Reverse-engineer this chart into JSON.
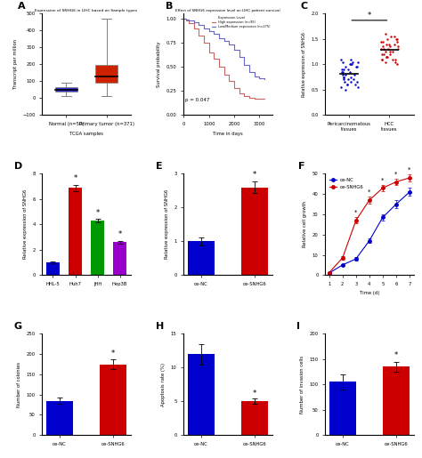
{
  "panel_A": {
    "title": "Expression of SNHG6 in LIHC based on Sample types",
    "xlabel": "TCGA samples",
    "ylabel": "Transcript per million",
    "xlabels": [
      "Normal (n=50)",
      "Primary tumor (n=371)"
    ],
    "ylim": [
      -100,
      500
    ],
    "yticks": [
      -100,
      0,
      100,
      200,
      300,
      400,
      500
    ],
    "normal_box": {
      "median": 50,
      "q1": 40,
      "q3": 65,
      "whislo": 10,
      "whishi": 90
    },
    "tumor_box": {
      "median": 130,
      "q1": 90,
      "q3": 195,
      "whislo": 15,
      "whishi": 470
    },
    "colors": [
      "#3333cc",
      "#cc2200"
    ]
  },
  "panel_B": {
    "title": "Effect of SNHG6 expression level on LIHC patient survival",
    "xlabel": "Time in days",
    "ylabel": "Survival probability",
    "pvalue": "p = 0.047",
    "high_x": [
      0,
      100,
      200,
      400,
      600,
      800,
      1000,
      1200,
      1400,
      1600,
      1800,
      2000,
      2200,
      2400,
      2600,
      2800,
      3000,
      3200
    ],
    "high_y": [
      1.0,
      0.98,
      0.95,
      0.9,
      0.82,
      0.75,
      0.65,
      0.58,
      0.5,
      0.42,
      0.35,
      0.28,
      0.22,
      0.2,
      0.18,
      0.17,
      0.17,
      0.17
    ],
    "low_x": [
      0,
      100,
      200,
      400,
      600,
      800,
      1000,
      1200,
      1400,
      1600,
      1800,
      2000,
      2200,
      2400,
      2600,
      2800,
      3000,
      3200
    ],
    "low_y": [
      1.0,
      0.99,
      0.98,
      0.96,
      0.93,
      0.9,
      0.87,
      0.84,
      0.8,
      0.77,
      0.73,
      0.68,
      0.6,
      0.52,
      0.45,
      0.4,
      0.38,
      0.37
    ],
    "legend_label": "Expression Level",
    "legend_high": "High expression (n=95)",
    "legend_low": "Low/Medium expression (n=275)",
    "color_high": "#cc6666",
    "color_low": "#6666cc",
    "ylim": [
      0,
      1.05
    ],
    "xlim": [
      0,
      3500
    ]
  },
  "panel_C": {
    "ylabel": "Relative expression of SNHG6",
    "xlabels": [
      "Pericarcinomatous\ntissues",
      "HCC\ntissues"
    ],
    "ylim": [
      0,
      2.0
    ],
    "yticks": [
      0.0,
      0.5,
      1.0,
      1.5,
      2.0
    ],
    "blue_dots_y": [
      0.6,
      0.65,
      0.7,
      0.75,
      0.8,
      0.85,
      0.9,
      0.95,
      1.0,
      1.05,
      1.1,
      0.55,
      0.6,
      0.65,
      0.7,
      0.75,
      0.8,
      0.85,
      0.9,
      0.95,
      1.0,
      1.05,
      0.5,
      0.6,
      0.7,
      0.8,
      0.9,
      1.0,
      1.1,
      0.55,
      0.65,
      0.75,
      0.85,
      0.95,
      1.05
    ],
    "red_dots_y": [
      1.1,
      1.15,
      1.2,
      1.25,
      1.3,
      1.35,
      1.4,
      1.45,
      1.5,
      1.05,
      1.1,
      1.15,
      1.2,
      1.25,
      1.3,
      1.35,
      1.4,
      1.45,
      1.5,
      1.55,
      1.0,
      1.1,
      1.2,
      1.3,
      1.4,
      1.5,
      1.6,
      1.05,
      1.15,
      1.25,
      1.35,
      1.45,
      1.55,
      1.1,
      1.3
    ],
    "color_blue": "#0000cc",
    "color_red": "#cc0000",
    "star_text": "*"
  },
  "panel_D": {
    "ylabel": "Relative expression of SNHG6",
    "categories": [
      "HHL-5",
      "Huh7",
      "JHH",
      "Hep3B"
    ],
    "values": [
      1.0,
      6.9,
      4.3,
      2.6
    ],
    "errors": [
      0.05,
      0.25,
      0.15,
      0.12
    ],
    "colors": [
      "#0000cc",
      "#cc0000",
      "#009900",
      "#9900cc"
    ],
    "ylim": [
      0,
      8
    ],
    "yticks": [
      0,
      2,
      4,
      6,
      8
    ],
    "star_indices": [
      1,
      2,
      3
    ]
  },
  "panel_E": {
    "ylabel": "Relative expression of SNHG6",
    "categories": [
      "oe-NC",
      "oe-SNHG6"
    ],
    "values": [
      1.0,
      2.6
    ],
    "errors": [
      0.12,
      0.18
    ],
    "colors": [
      "#0000cc",
      "#cc0000"
    ],
    "ylim": [
      0,
      3
    ],
    "yticks": [
      0,
      1,
      2,
      3
    ],
    "star_indices": [
      1
    ]
  },
  "panel_F": {
    "xlabel": "Time (d)",
    "ylabel": "Relative cell growth",
    "legend_nc": "oe-NC",
    "legend_snhg6": "oe-SNHG6",
    "days": [
      1,
      2,
      3,
      4,
      5,
      6,
      7
    ],
    "nc_values": [
      1.0,
      5.0,
      8.0,
      17.0,
      28.5,
      35.0,
      41.0
    ],
    "snhg6_values": [
      1.2,
      8.5,
      27.0,
      37.0,
      43.0,
      46.0,
      48.0
    ],
    "nc_errors": [
      0.2,
      0.5,
      0.8,
      1.2,
      1.5,
      1.8,
      2.0
    ],
    "snhg6_errors": [
      0.2,
      0.8,
      1.5,
      1.8,
      1.5,
      1.5,
      1.8
    ],
    "color_nc": "#0000cc",
    "color_snhg6": "#cc0000",
    "ylim": [
      0,
      50
    ],
    "yticks": [
      0,
      10,
      20,
      30,
      40,
      50
    ],
    "star_days": [
      3,
      4,
      5,
      6,
      7
    ]
  },
  "panel_G": {
    "ylabel": "Number of colonies",
    "categories": [
      "oe-NC",
      "oe-SNHG6"
    ],
    "values": [
      85,
      175
    ],
    "errors": [
      8,
      12
    ],
    "colors": [
      "#0000cc",
      "#cc0000"
    ],
    "ylim": [
      0,
      250
    ],
    "yticks": [
      0,
      50,
      100,
      150,
      200,
      250
    ],
    "star_indices": [
      1
    ]
  },
  "panel_H": {
    "ylabel": "Apoptosis rate (%)",
    "categories": [
      "oe-NC",
      "oe-SNHG6"
    ],
    "values": [
      12.0,
      5.0
    ],
    "errors": [
      1.5,
      0.4
    ],
    "colors": [
      "#0000cc",
      "#cc0000"
    ],
    "ylim": [
      0,
      15
    ],
    "yticks": [
      0,
      5,
      10,
      15
    ],
    "star_indices": [
      1
    ]
  },
  "panel_I": {
    "ylabel": "Number of invasion cells",
    "categories": [
      "oe-NC",
      "oe-SNHG6"
    ],
    "values": [
      105,
      135
    ],
    "errors": [
      15,
      10
    ],
    "colors": [
      "#0000cc",
      "#cc0000"
    ],
    "ylim": [
      0,
      200
    ],
    "yticks": [
      0,
      50,
      100,
      150,
      200
    ],
    "star_indices": [
      1
    ]
  }
}
